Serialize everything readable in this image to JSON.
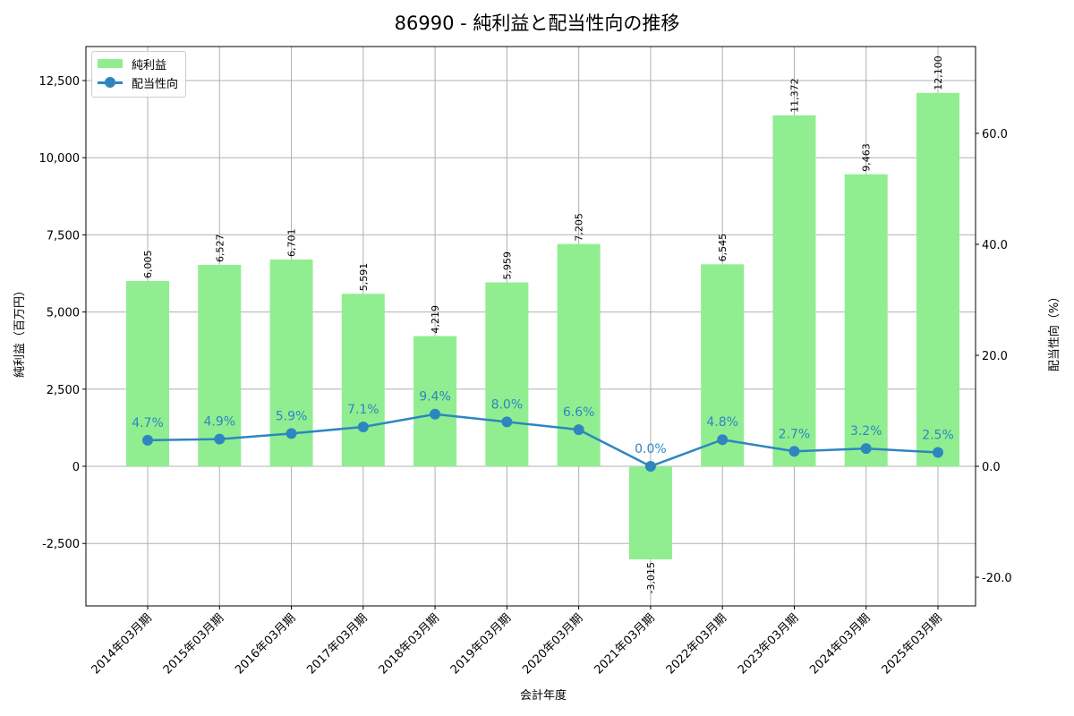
{
  "title": "86990 - 純利益と配当性向の推移",
  "legend": {
    "bar_label": "純利益",
    "line_label": "配当性向"
  },
  "axes": {
    "xlabel": "会計年度",
    "ylabel_left": "純利益（百万円）",
    "ylabel_right": "配当性向（%）",
    "left_ticks": [
      "12,500",
      "10,000",
      "7,500",
      "5,000",
      "2,500",
      "0",
      "-2,500"
    ],
    "right_ticks": [
      "60.0",
      "40.0",
      "20.0",
      "0.0",
      "-20.0"
    ]
  },
  "colors": {
    "bar": "#90ee90",
    "line": "#2e86c1",
    "grid": "#b0b0b0"
  },
  "chart_data": {
    "type": "bar",
    "title": "86990 - 純利益と配当性向の推移",
    "xlabel": "会計年度",
    "ylabel": "純利益（百万円）",
    "y2label": "配当性向（%）",
    "categories": [
      "2014年03月期",
      "2015年03月期",
      "2016年03月期",
      "2017年03月期",
      "2018年03月期",
      "2019年03月期",
      "2020年03月期",
      "2021年03月期",
      "2022年03月期",
      "2023年03月期",
      "2024年03月期",
      "2025年03月期"
    ],
    "series": [
      {
        "name": "純利益",
        "type": "bar",
        "axis": "left",
        "values": [
          6005,
          6527,
          6701,
          5591,
          4219,
          5959,
          7205,
          -3015,
          6545,
          11372,
          9463,
          12100
        ],
        "labels": [
          "6,005",
          "6,527",
          "6,701",
          "5,591",
          "4,219",
          "5,959",
          "7,205",
          "-3,015",
          "6,545",
          "11,372",
          "9,463",
          "12,100"
        ]
      },
      {
        "name": "配当性向",
        "type": "line",
        "axis": "right",
        "values": [
          4.7,
          4.9,
          5.9,
          7.1,
          9.4,
          8.0,
          6.6,
          0.0,
          4.8,
          2.7,
          3.2,
          2.5
        ],
        "labels": [
          "4.7%",
          "4.9%",
          "5.9%",
          "7.1%",
          "9.4%",
          "8.0%",
          "6.6%",
          "0.0%",
          "4.8%",
          "2.7%",
          "3.2%",
          "2.5%"
        ]
      }
    ],
    "ylim": [
      -4548,
      13580
    ],
    "y2lim": [
      -25.3,
      75.5
    ],
    "yticks": [
      -2500,
      0,
      2500,
      5000,
      7500,
      10000,
      12500
    ],
    "y2ticks": [
      -20,
      0,
      20,
      40,
      60
    ],
    "grid": true,
    "legend_position": "upper left"
  }
}
